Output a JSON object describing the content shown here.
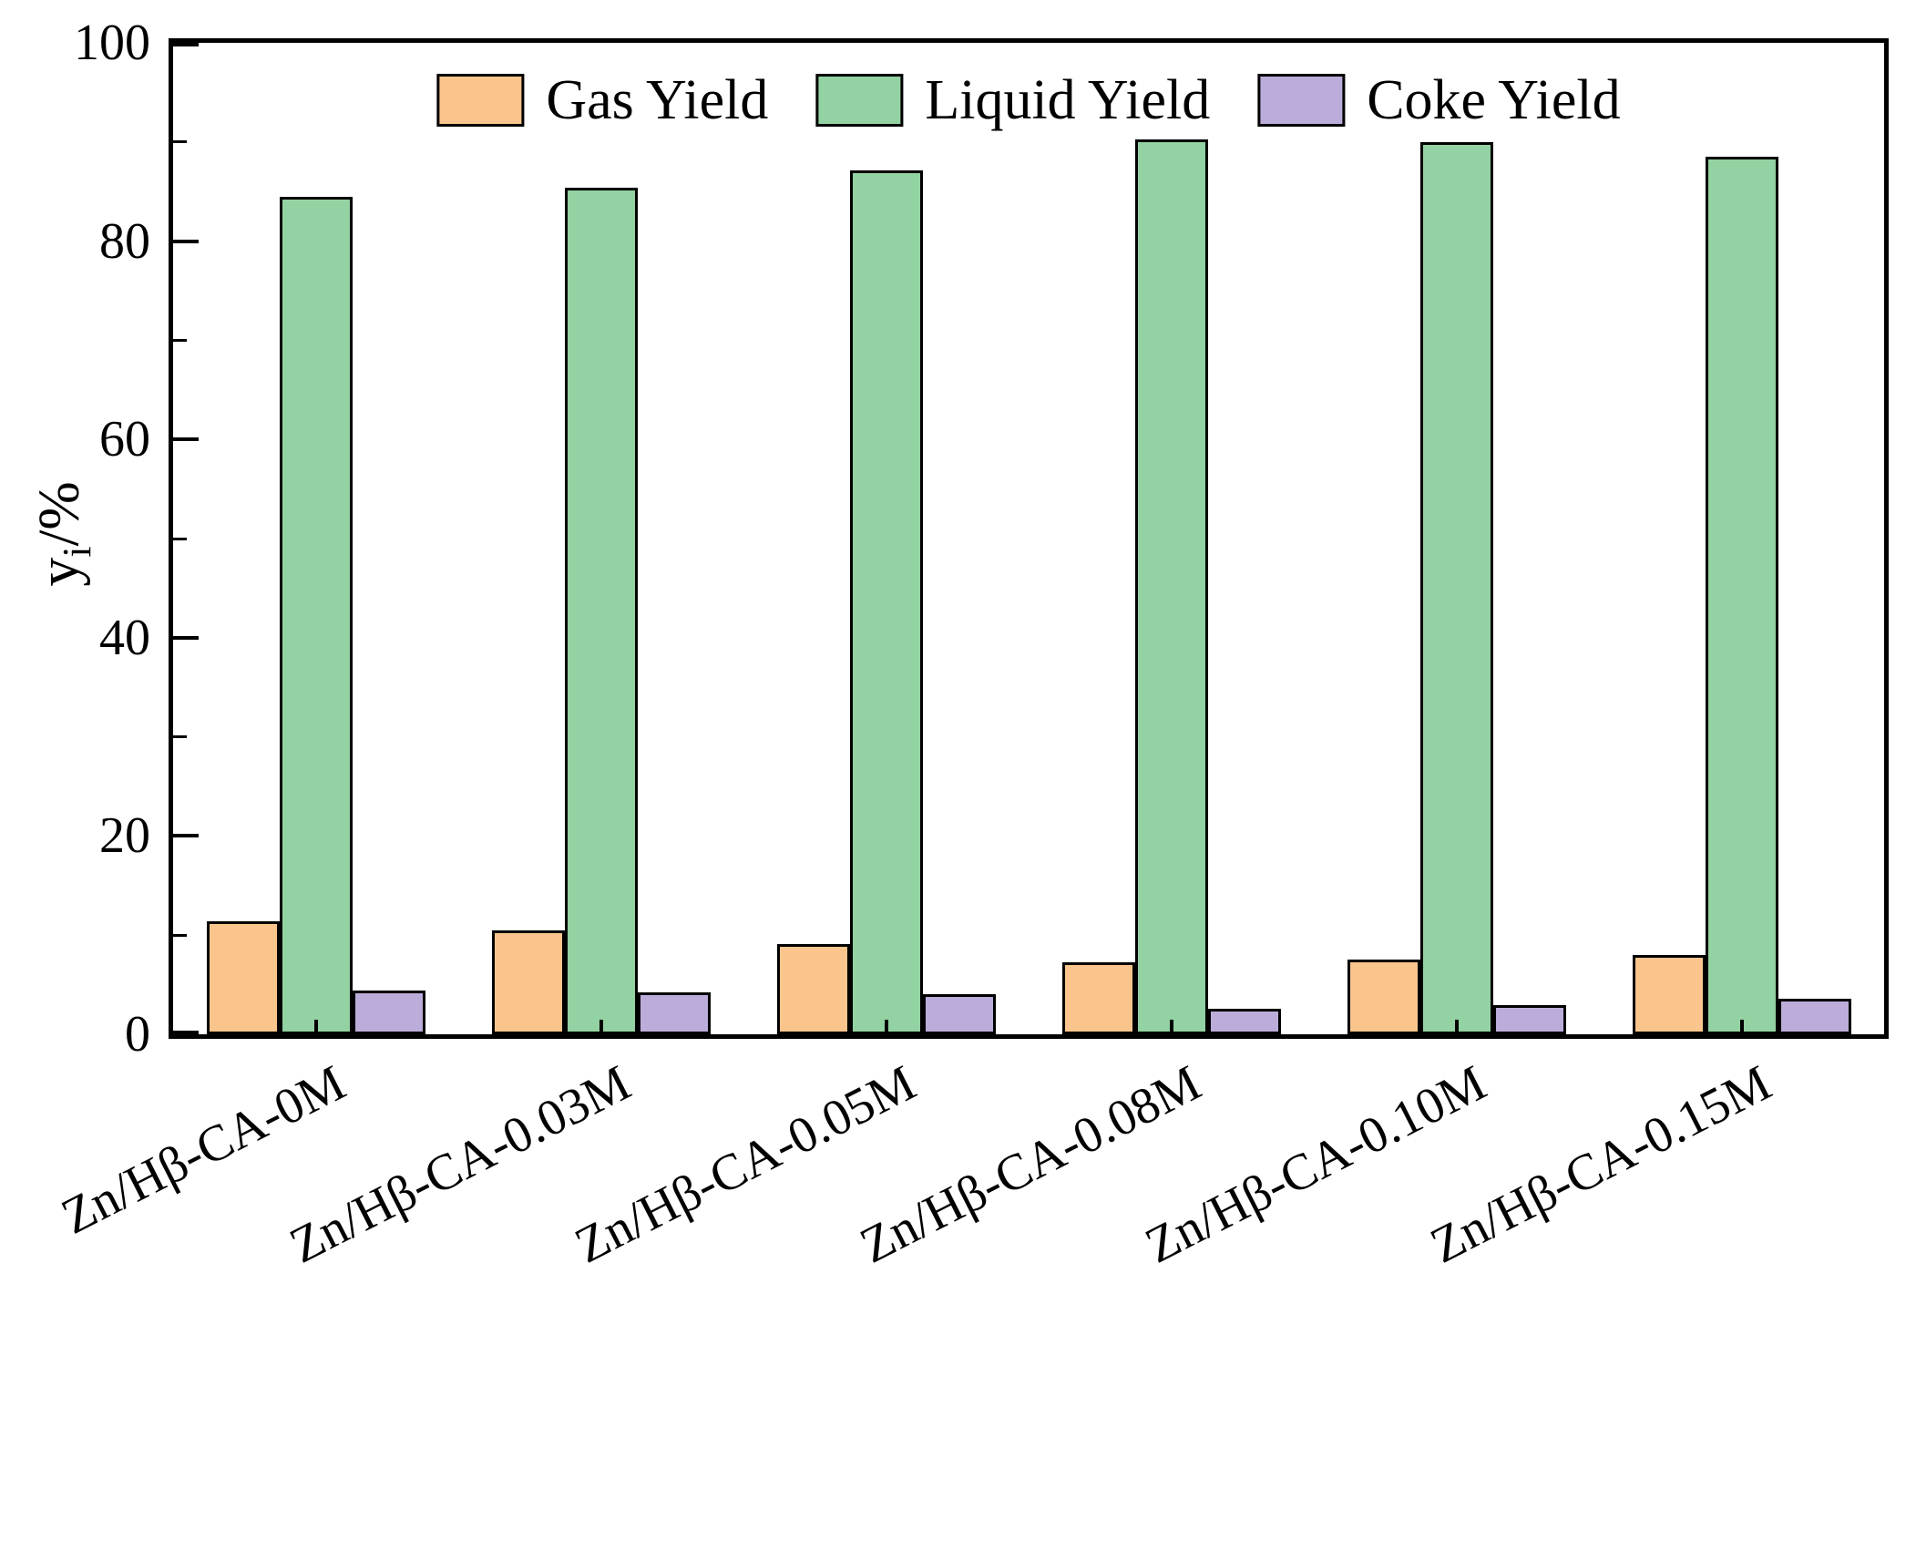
{
  "chart_data": {
    "type": "bar",
    "title": "",
    "xlabel": "",
    "ylabel_base": "y",
    "ylabel_sub": "i",
    "ylabel_suffix": "/%",
    "ylim": [
      0,
      100
    ],
    "yticks": [
      0,
      20,
      40,
      60,
      80,
      100
    ],
    "yminorticks": [
      10,
      30,
      50,
      70,
      90
    ],
    "grid": false,
    "legend_position": "top-center-inside",
    "categories": [
      "Zn/Hβ-CA-0M",
      "Zn/Hβ-CA-0.03M",
      "Zn/Hβ-CA-0.05M",
      "Zn/Hβ-CA-0.08M",
      "Zn/Hβ-CA-0.10M",
      "Zn/Hβ-CA-0.15M"
    ],
    "series": [
      {
        "name": "Gas Yield",
        "color": "#FAC58C",
        "values": [
          11.4,
          10.5,
          9.1,
          7.3,
          7.5,
          8.0
        ]
      },
      {
        "name": "Liquid Yield",
        "color": "#93D2A2",
        "values": [
          84.5,
          85.4,
          87.1,
          90.3,
          90.0,
          88.5
        ]
      },
      {
        "name": "Coke Yield",
        "color": "#BCACD9",
        "values": [
          4.4,
          4.2,
          4.0,
          2.6,
          2.9,
          3.6
        ]
      }
    ],
    "bar_border_color": "#000000",
    "axis_color": "#000000",
    "background_color": "#ffffff"
  }
}
